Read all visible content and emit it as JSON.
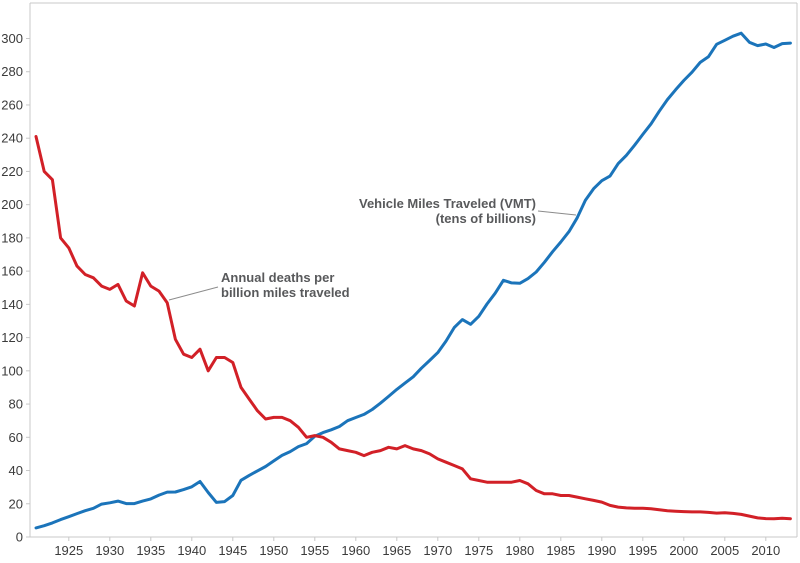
{
  "chart_data": {
    "type": "line",
    "x_start": 1921,
    "xlim": [
      1921,
      2013
    ],
    "ylim": [
      0,
      317
    ],
    "grid": false,
    "legend_position": "inline-annotations",
    "x_ticks": [
      1925,
      1930,
      1935,
      1940,
      1945,
      1950,
      1955,
      1960,
      1965,
      1970,
      1975,
      1980,
      1985,
      1990,
      1995,
      2000,
      2005,
      2010
    ],
    "y_ticks": [
      0,
      20,
      40,
      60,
      80,
      100,
      120,
      140,
      160,
      180,
      200,
      220,
      240,
      260,
      280,
      300
    ],
    "series": [
      {
        "name": "Vehicle Miles Traveled (VMT) (tens of billions)",
        "color": "#1b74ba",
        "values": [
          5.5,
          6.8,
          8.5,
          10.5,
          12.2,
          14.1,
          15.8,
          17.3,
          19.8,
          20.6,
          21.6,
          20.1,
          20.1,
          21.6,
          22.9,
          25.2,
          27,
          27.1,
          28.5,
          30.2,
          33.4,
          26.8,
          20.8,
          21.3,
          25,
          34.1,
          37.1,
          39.8,
          42.4,
          45.8,
          49.1,
          51.4,
          54.4,
          56.2,
          60.6,
          62.8,
          64.5,
          66.5,
          70,
          71.9,
          73.8,
          76.7,
          80.5,
          84.6,
          88.8,
          92.6,
          96.4,
          101.6,
          106.2,
          111,
          117.9,
          126,
          130.8,
          128,
          132.8,
          140.2,
          146.7,
          154.5,
          152.9,
          152.7,
          155.5,
          159.5,
          165.3,
          171.7,
          177.5,
          183.8,
          192.1,
          202.6,
          209.6,
          214.4,
          217.2,
          224.7,
          229.7,
          235.8,
          242.3,
          248.6,
          256.2,
          263.2,
          269.1,
          274.7,
          279.7,
          285.6,
          289,
          296.5,
          298.9,
          301.4,
          303.2,
          297.7,
          295.7,
          296.7,
          294.6,
          296.9,
          297.2
        ]
      },
      {
        "name": "Annual deaths per billion miles traveled",
        "color": "#d22027",
        "values": [
          241,
          220,
          215,
          180,
          174,
          163,
          158,
          156,
          151,
          149,
          152,
          142,
          139,
          159,
          151,
          148,
          141,
          119,
          110,
          108,
          113,
          100,
          108,
          108,
          105,
          90,
          83,
          76,
          71,
          72,
          72,
          70,
          66,
          60,
          61,
          60,
          57,
          53,
          52,
          51,
          49,
          51,
          52,
          54,
          53,
          55,
          53,
          52,
          50,
          47,
          45,
          43,
          41,
          35,
          34,
          33,
          33,
          33,
          33,
          34,
          32,
          28,
          26,
          26,
          25,
          25,
          24,
          23,
          22,
          21,
          19,
          18,
          17.5,
          17.3,
          17.3,
          17,
          16.4,
          15.8,
          15.5,
          15.3,
          15.1,
          15.1,
          14.8,
          14.4,
          14.6,
          14.2,
          13.6,
          12.6,
          11.5,
          11.1,
          11,
          11.3,
          11
        ]
      }
    ],
    "annotations": [
      {
        "id": "deaths",
        "lines": [
          "Annual deaths per",
          "billion miles traveled"
        ]
      },
      {
        "id": "vmt",
        "lines": [
          "Vehicle Miles Traveled (VMT)",
          "(tens of billions)"
        ]
      }
    ],
    "colors": {
      "vmt_line": "#1b74ba",
      "deaths_line": "#d22027",
      "axis": "#c8c8c8",
      "tick_text": "#3b3b3b",
      "annotation_text": "#58595b",
      "leader_line": "#8c8c8c"
    },
    "title": "",
    "xlabel": "",
    "ylabel": ""
  }
}
